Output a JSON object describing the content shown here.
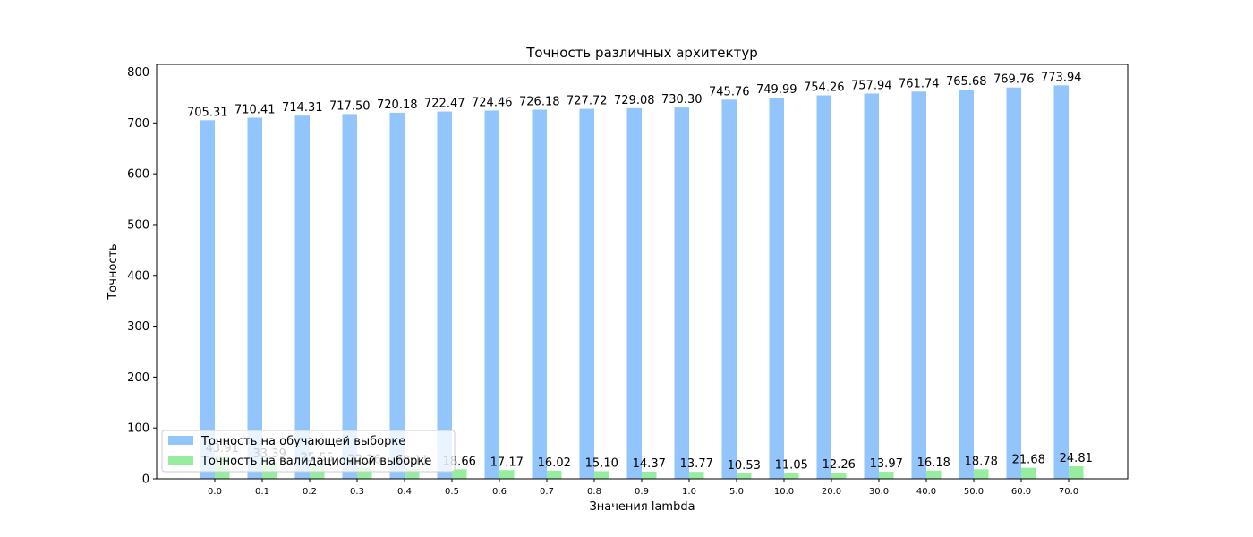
{
  "chart_data": {
    "type": "bar",
    "title": "Точность различных архитектур",
    "xlabel": "Значения lambda",
    "ylabel": "Точность",
    "categories": [
      "0.0",
      "0.1",
      "0.2",
      "0.3",
      "0.4",
      "0.5",
      "0.6",
      "0.7",
      "0.8",
      "0.9",
      "1.0",
      "5.0",
      "10.0",
      "20.0",
      "30.0",
      "40.0",
      "50.0",
      "60.0",
      "70.0"
    ],
    "ylim": [
      0,
      815
    ],
    "yticks": [
      0,
      100,
      200,
      300,
      400,
      500,
      600,
      700,
      800
    ],
    "grid": false,
    "legend_position": "lower-left",
    "series": [
      {
        "name": "Точность на обучающей выборке",
        "color": "#92c5fb",
        "values": [
          705.31,
          710.41,
          714.31,
          717.5,
          720.18,
          722.47,
          724.46,
          726.18,
          727.72,
          729.08,
          730.3,
          745.76,
          749.99,
          754.26,
          757.94,
          761.74,
          765.68,
          769.76,
          773.94
        ],
        "labels": [
          "705.31",
          "710.41",
          "714.31",
          "717.50",
          "720.18",
          "722.47",
          "724.46",
          "726.18",
          "727.72",
          "729.08",
          "730.30",
          "745.76",
          "749.99",
          "754.26",
          "757.94",
          "761.74",
          "765.68",
          "769.76",
          "773.94"
        ]
      },
      {
        "name": "Точность на валидационной выборке",
        "color": "#96ec9f",
        "values": [
          43.91,
          33.39,
          25.55,
          22.26,
          20.11,
          18.66,
          17.17,
          16.02,
          15.1,
          14.37,
          13.77,
          10.53,
          11.05,
          12.26,
          13.97,
          16.18,
          18.78,
          21.68,
          24.81
        ],
        "labels": [
          "43.91",
          "33.39",
          "25.55",
          "22.26",
          "20.11",
          "18.66",
          "17.17",
          "16.02",
          "15.10",
          "14.37",
          "13.77",
          "10.53",
          "11.05",
          "12.26",
          "13.97",
          "16.18",
          "18.78",
          "21.68",
          "24.81"
        ]
      }
    ]
  }
}
